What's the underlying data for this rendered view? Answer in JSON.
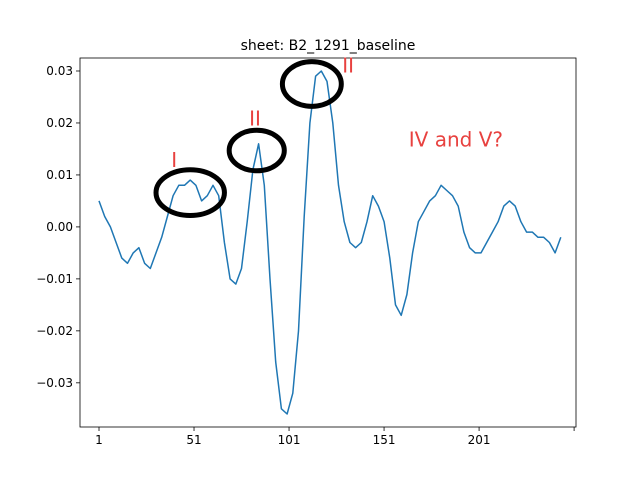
{
  "chart_data": {
    "type": "line",
    "title": "sheet: B2_1291_baseline",
    "xlabel": "",
    "ylabel": "",
    "xlim": [
      -9,
      252
    ],
    "ylim": [
      -0.0385,
      0.0325
    ],
    "xticks": [
      1,
      51,
      101,
      151,
      201,
      251
    ],
    "xtick_labels": [
      "1",
      "51",
      "101",
      "151",
      "201",
      ""
    ],
    "yticks": [
      -0.03,
      -0.02,
      -0.01,
      0.0,
      0.01,
      0.02,
      0.03
    ],
    "ytick_labels": [
      "−0.03",
      "−0.02",
      "−0.01",
      "0.00",
      "0.01",
      "0.02",
      "0.03"
    ],
    "grid": false,
    "series": [
      {
        "color": "#1f77b4",
        "x": [
          1,
          4,
          7,
          10,
          13,
          16,
          19,
          22,
          25,
          28,
          31,
          34,
          37,
          40,
          43,
          46,
          49,
          52,
          55,
          58,
          61,
          64,
          67,
          70,
          73,
          76,
          79,
          82,
          85,
          88,
          91,
          94,
          97,
          100,
          103,
          106,
          109,
          112,
          115,
          118,
          121,
          124,
          127,
          130,
          133,
          136,
          139,
          142,
          145,
          148,
          151,
          154,
          157,
          160,
          163,
          166,
          169,
          172,
          175,
          178,
          181,
          184,
          187,
          190,
          193,
          196,
          199,
          202,
          205,
          208,
          211,
          214,
          217,
          220,
          223,
          226,
          229,
          232,
          235,
          238,
          241,
          244
        ],
        "y": [
          0.005,
          0.002,
          0.0,
          -0.003,
          -0.006,
          -0.007,
          -0.005,
          -0.004,
          -0.007,
          -0.008,
          -0.005,
          -0.002,
          0.002,
          0.006,
          0.008,
          0.008,
          0.009,
          0.008,
          0.005,
          0.006,
          0.008,
          0.006,
          -0.003,
          -0.01,
          -0.011,
          -0.008,
          0.001,
          0.011,
          0.016,
          0.008,
          -0.01,
          -0.026,
          -0.035,
          -0.036,
          -0.032,
          -0.02,
          0.002,
          0.02,
          0.029,
          0.03,
          0.028,
          0.02,
          0.008,
          0.001,
          -0.003,
          -0.004,
          -0.003,
          0.001,
          0.006,
          0.004,
          0.001,
          -0.006,
          -0.015,
          -0.017,
          -0.013,
          -0.005,
          0.001,
          0.003,
          0.005,
          0.006,
          0.008,
          0.007,
          0.006,
          0.004,
          -0.001,
          -0.004,
          -0.005,
          -0.005,
          -0.003,
          -0.001,
          0.001,
          0.004,
          0.005,
          0.004,
          0.001,
          -0.001,
          -0.001,
          -0.002,
          -0.002,
          -0.003,
          -0.005,
          -0.002
        ]
      }
    ],
    "annotations": [
      {
        "text": "I",
        "x": 39,
        "y": 0.0115,
        "color": "#e8413f"
      },
      {
        "text": "II",
        "x": 80,
        "y": 0.0195,
        "color": "#e8413f"
      },
      {
        "text": "II",
        "x": 129,
        "y": 0.0297,
        "color": "#e8413f"
      },
      {
        "text": "IV and V?",
        "x": 164,
        "y": 0.0155,
        "color": "#e8413f"
      }
    ],
    "circles": [
      {
        "cx": 49,
        "cy": 0.0066,
        "rx": 18,
        "ry": 0.0044
      },
      {
        "cx": 84,
        "cy": 0.0147,
        "rx": 14.5,
        "ry": 0.0039
      },
      {
        "cx": 113,
        "cy": 0.0275,
        "rx": 15.5,
        "ry": 0.0043
      }
    ]
  }
}
